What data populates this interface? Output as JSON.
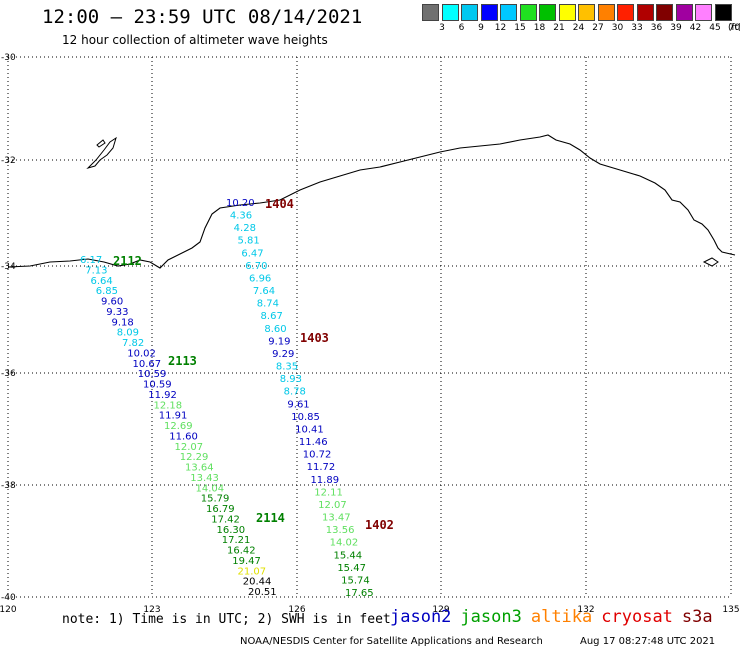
{
  "header": {
    "title": "12:00 – 23:59 UTC 08/14/2021",
    "subtitle": "12 hour collection of altimeter wave heights"
  },
  "scale": {
    "labels": [
      "3",
      "6",
      "9",
      "12",
      "15",
      "18",
      "21",
      "24",
      "27",
      "30",
      "33",
      "36",
      "39",
      "42",
      "45",
      "70"
    ],
    "unit": "(ft)",
    "colors": [
      "#707070",
      "#00ffff",
      "#00c8f0",
      "#0000ff",
      "#00c8ff",
      "#20e020",
      "#00c000",
      "#ffff00",
      "#ffc000",
      "#ff8000",
      "#ff2000",
      "#b00000",
      "#800000",
      "#a000a0",
      "#ff80ff",
      "#000000"
    ]
  },
  "axes": {
    "lat_labels": [
      "-30",
      "-32",
      "-34",
      "-36",
      "-38",
      "-40"
    ],
    "lon_labels": [
      "120",
      "123",
      "126",
      "129",
      "132",
      "135"
    ]
  },
  "tracks": {
    "colors": {
      "jason2": "#0000c0",
      "jason3": "#008000",
      "altika": "#ff8000",
      "cryosat": "#c00000",
      "s3a": "#800000",
      "cyan": "#00c8e8",
      "lightgreen": "#60e060",
      "yellow": "#e0e000"
    },
    "pass_ids": {
      "p1404": "1404",
      "p1403": "1403",
      "p1402": "1402",
      "p2112": "2112",
      "p2113": "2113",
      "p2114": "2114"
    },
    "east": [
      {
        "v": "10.20",
        "c": "jason2"
      },
      {
        "v": "4.36",
        "c": "cyan"
      },
      {
        "v": "4.28",
        "c": "cyan"
      },
      {
        "v": "5.81",
        "c": "cyan"
      },
      {
        "v": "6.47",
        "c": "cyan"
      },
      {
        "v": "6.70",
        "c": "cyan"
      },
      {
        "v": "6.96",
        "c": "cyan"
      },
      {
        "v": "7.64",
        "c": "cyan"
      },
      {
        "v": "8.74",
        "c": "cyan"
      },
      {
        "v": "8.67",
        "c": "cyan"
      },
      {
        "v": "8.60",
        "c": "cyan"
      },
      {
        "v": "9.19",
        "c": "jason2"
      },
      {
        "v": "9.29",
        "c": "jason2"
      },
      {
        "v": "8.35",
        "c": "cyan"
      },
      {
        "v": "8.93",
        "c": "cyan"
      },
      {
        "v": "8.78",
        "c": "cyan"
      },
      {
        "v": "9.61",
        "c": "jason2"
      },
      {
        "v": "10.85",
        "c": "jason2"
      },
      {
        "v": "10.41",
        "c": "jason2"
      },
      {
        "v": "11.46",
        "c": "jason2"
      },
      {
        "v": "10.72",
        "c": "jason2"
      },
      {
        "v": "11.72",
        "c": "jason2"
      },
      {
        "v": "11.89",
        "c": "jason2"
      },
      {
        "v": "12.11",
        "c": "lightgreen"
      },
      {
        "v": "12.07",
        "c": "lightgreen"
      },
      {
        "v": "13.47",
        "c": "lightgreen"
      },
      {
        "v": "13.56",
        "c": "lightgreen"
      },
      {
        "v": "14.02",
        "c": "lightgreen"
      },
      {
        "v": "15.44",
        "c": "jason3"
      },
      {
        "v": "15.47",
        "c": "jason3"
      },
      {
        "v": "15.74",
        "c": "jason3"
      },
      {
        "v": "17.65",
        "c": "jason3"
      }
    ],
    "west": [
      {
        "v": "6.17",
        "c": "cyan"
      },
      {
        "v": "7.13",
        "c": "cyan"
      },
      {
        "v": "6.64",
        "c": "cyan"
      },
      {
        "v": "6.85",
        "c": "cyan"
      },
      {
        "v": "9.60",
        "c": "jason2"
      },
      {
        "v": "9.33",
        "c": "jason2"
      },
      {
        "v": "9.18",
        "c": "jason2"
      },
      {
        "v": "8.09",
        "c": "cyan"
      },
      {
        "v": "7.82",
        "c": "cyan"
      },
      {
        "v": "10.02",
        "c": "jason2"
      },
      {
        "v": "10.67",
        "c": "jason2"
      },
      {
        "v": "10.59",
        "c": "jason2"
      },
      {
        "v": "10.59",
        "c": "jason2"
      },
      {
        "v": "11.92",
        "c": "jason2"
      },
      {
        "v": "12.18",
        "c": "lightgreen"
      },
      {
        "v": "11.91",
        "c": "jason2"
      },
      {
        "v": "12.69",
        "c": "lightgreen"
      },
      {
        "v": "11.60",
        "c": "jason2"
      },
      {
        "v": "12.07",
        "c": "lightgreen"
      },
      {
        "v": "12.29",
        "c": "lightgreen"
      },
      {
        "v": "13.64",
        "c": "lightgreen"
      },
      {
        "v": "13.43",
        "c": "lightgreen"
      },
      {
        "v": "14.04",
        "c": "lightgreen"
      },
      {
        "v": "15.79",
        "c": "jason3"
      },
      {
        "v": "16.79",
        "c": "jason3"
      },
      {
        "v": "17.42",
        "c": "jason3"
      },
      {
        "v": "16.30",
        "c": "jason3"
      },
      {
        "v": "17.21",
        "c": "jason3"
      },
      {
        "v": "16.42",
        "c": "jason3"
      },
      {
        "v": "19.47",
        "c": "jason3"
      },
      {
        "v": "21.07",
        "c": "yellow"
      },
      {
        "v": "20.44",
        "c": "black"
      },
      {
        "v": "20.51",
        "c": "black"
      }
    ]
  },
  "footer": {
    "note": "note:  1) Time is in UTC;  2) SWH is in feet",
    "legend": [
      {
        "label": "jason2",
        "color": "#0000c0"
      },
      {
        "label": "jason3",
        "color": "#00a000"
      },
      {
        "label": "altika",
        "color": "#ff8000"
      },
      {
        "label": "cryosat",
        "color": "#e00000"
      },
      {
        "label": "s3a",
        "color": "#800000"
      }
    ],
    "credit": "NOAA/NESDIS Center for Satellite Applications and Research",
    "timestamp": "Aug 17 08:27:48 UTC 2021"
  }
}
